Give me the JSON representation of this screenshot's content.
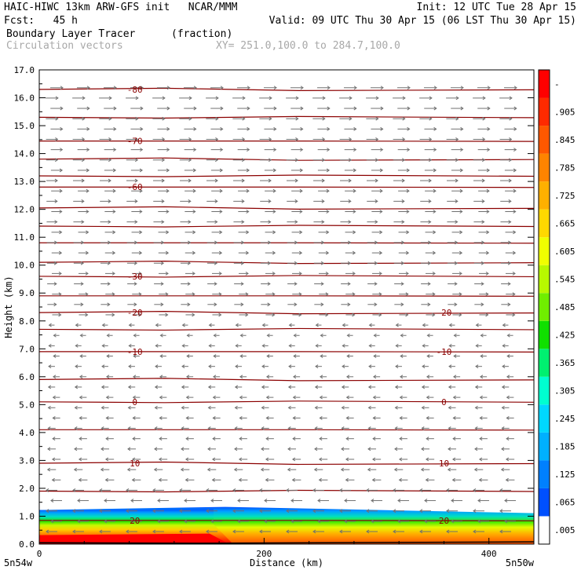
{
  "header": {
    "line1_left": "HAIC-HIWC 13km ARW-GFS init   NCAR/MMM",
    "line1_right": "Init: 12 UTC Tue 28 Apr 15",
    "line2_left": "Fcst:   45 h",
    "line2_right": "Valid: 09 UTC Thu 30 Apr 15 (06 LST Thu 30 Apr 15)",
    "field_name": "Boundary Layer Tracer",
    "field_units": "(fraction)",
    "vectors_label": "Circulation vectors",
    "xy_label": "XY= 251.0,100.0 to 284.7,100.0"
  },
  "chart_data": {
    "type": "cross-section",
    "title": "Boundary Layer Tracer (fraction)",
    "xlabel": "Distance (km)",
    "ylabel": "Height (km)",
    "xlim": [
      0,
      440
    ],
    "ylim": [
      0,
      17
    ],
    "x_ticks": [
      0,
      200,
      400
    ],
    "y_ticks": [
      "0.0",
      "1.0",
      "2.0",
      "3.0",
      "4.0",
      "5.0",
      "6.0",
      "7.0",
      "8.0",
      "9.0",
      "10.0",
      "11.0",
      "12.0",
      "13.0",
      "14.0",
      "15.0",
      "16.0",
      "17.0"
    ],
    "x_endpoint_labels": [
      "5n54w",
      "5n50w"
    ],
    "colorbar_levels": [
      ".005",
      ".065",
      ".125",
      ".185",
      ".245",
      ".305",
      ".365",
      ".425",
      ".485",
      ".545",
      ".605",
      ".665",
      ".725",
      ".785",
      ".845",
      ".905",
      "-"
    ],
    "colorbar_colors": [
      "#ffffff",
      "#0050ff",
      "#0080ff",
      "#00b0ff",
      "#00d8ff",
      "#00ffd0",
      "#00f070",
      "#10e000",
      "#70ee00",
      "#b8f800",
      "#f0ff00",
      "#ffd800",
      "#ffb000",
      "#ff8400",
      "#ff5800",
      "#ff2a00",
      "#ff0000"
    ],
    "contour_labels": [
      {
        "value": "-80",
        "x": [
          85,
          440
        ],
        "y": 16.3
      },
      {
        "value": "-70",
        "x": [
          85,
          440
        ],
        "y": 14.45
      },
      {
        "value": "-60",
        "x": [
          85,
          440
        ],
        "y": 12.8
      },
      {
        "value": "-30",
        "x": [
          85,
          440
        ],
        "y": 9.6
      },
      {
        "value": "-20",
        "x": [
          85,
          360
        ],
        "y": 8.3
      },
      {
        "value": "-10",
        "x": [
          85,
          360
        ],
        "y": 6.9
      },
      {
        "value": "0",
        "x": [
          85,
          360
        ],
        "y": 5.1
      },
      {
        "value": "10",
        "x": [
          85,
          360
        ],
        "y": 2.9
      },
      {
        "value": "20",
        "x": [
          85,
          360
        ],
        "y": 0.85
      }
    ],
    "contour_levels_y": [
      16.3,
      15.3,
      14.45,
      13.8,
      13.2,
      12.8,
      12.05,
      11.4,
      10.8,
      10.1,
      9.6,
      8.9,
      8.3,
      7.7,
      6.9,
      5.9,
      5.1,
      4.1,
      2.9,
      1.9,
      0.85
    ],
    "tracer_layer": {
      "top_km": 1.25,
      "full_fraction_region_km": [
        0,
        155
      ],
      "descriptor": "tracer near 1.0 below ~1 km west of 160 km; 0.3-0.8 east of 160 km"
    },
    "vector_flow": {
      "upper_levels": "westerly (pointing right) above ~8 km",
      "lower_levels": "easterly (pointing left) below ~8 km"
    }
  }
}
